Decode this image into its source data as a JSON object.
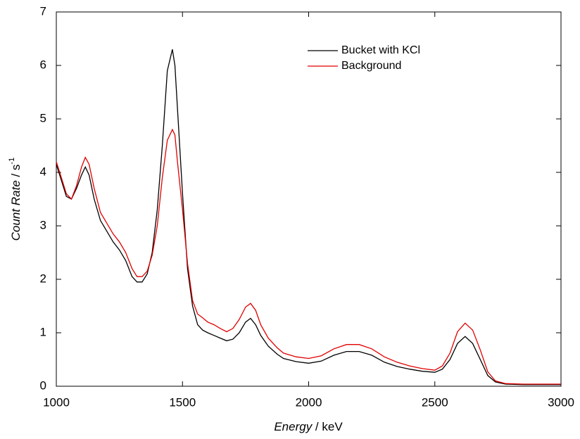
{
  "chart_data": {
    "type": "line",
    "x_label": {
      "italic": "Energy",
      "rest": " / keV"
    },
    "y_label": {
      "italic": "Count Rate",
      "rest": " / s",
      "sup": "-1"
    },
    "x": [
      1000,
      1020,
      1040,
      1060,
      1080,
      1100,
      1115,
      1130,
      1150,
      1175,
      1200,
      1225,
      1250,
      1275,
      1300,
      1320,
      1340,
      1360,
      1380,
      1400,
      1420,
      1440,
      1460,
      1470,
      1480,
      1500,
      1520,
      1540,
      1560,
      1580,
      1600,
      1625,
      1650,
      1675,
      1700,
      1725,
      1750,
      1770,
      1790,
      1810,
      1840,
      1875,
      1900,
      1950,
      2000,
      2050,
      2100,
      2150,
      2200,
      2250,
      2300,
      2350,
      2400,
      2450,
      2500,
      2530,
      2560,
      2590,
      2620,
      2650,
      2680,
      2710,
      2740,
      2780,
      2850,
      3000
    ],
    "series": [
      {
        "name": "Bucket with KCl",
        "color": "#000000",
        "values": [
          4.15,
          3.85,
          3.55,
          3.5,
          3.7,
          3.95,
          4.1,
          3.95,
          3.5,
          3.1,
          2.9,
          2.7,
          2.55,
          2.35,
          2.05,
          1.95,
          1.95,
          2.1,
          2.5,
          3.3,
          4.5,
          5.9,
          6.3,
          6.0,
          5.2,
          3.6,
          2.2,
          1.5,
          1.15,
          1.05,
          1.0,
          0.95,
          0.9,
          0.85,
          0.88,
          1.0,
          1.2,
          1.27,
          1.15,
          0.95,
          0.75,
          0.6,
          0.52,
          0.46,
          0.43,
          0.47,
          0.58,
          0.65,
          0.65,
          0.58,
          0.45,
          0.37,
          0.32,
          0.28,
          0.26,
          0.32,
          0.5,
          0.8,
          0.93,
          0.8,
          0.5,
          0.2,
          0.08,
          0.04,
          0.03,
          0.03
        ]
      },
      {
        "name": "Background",
        "color": "#e00000",
        "values": [
          4.2,
          3.9,
          3.6,
          3.5,
          3.75,
          4.1,
          4.28,
          4.15,
          3.7,
          3.25,
          3.05,
          2.85,
          2.7,
          2.5,
          2.2,
          2.05,
          2.05,
          2.15,
          2.45,
          3.0,
          3.9,
          4.6,
          4.8,
          4.7,
          4.2,
          3.3,
          2.3,
          1.6,
          1.35,
          1.28,
          1.2,
          1.15,
          1.08,
          1.02,
          1.08,
          1.25,
          1.48,
          1.55,
          1.42,
          1.15,
          0.9,
          0.72,
          0.62,
          0.55,
          0.52,
          0.57,
          0.7,
          0.78,
          0.78,
          0.7,
          0.55,
          0.45,
          0.38,
          0.33,
          0.3,
          0.38,
          0.62,
          1.02,
          1.18,
          1.05,
          0.68,
          0.27,
          0.1,
          0.05,
          0.04,
          0.04
        ]
      }
    ],
    "xlim": [
      1000,
      3000
    ],
    "xticks": [
      1000,
      1500,
      2000,
      2500,
      3000
    ],
    "ylim": [
      0,
      7
    ],
    "yticks": [
      0,
      1,
      2,
      3,
      4,
      5,
      6,
      7
    ],
    "grid": false,
    "legend": "top-right"
  }
}
